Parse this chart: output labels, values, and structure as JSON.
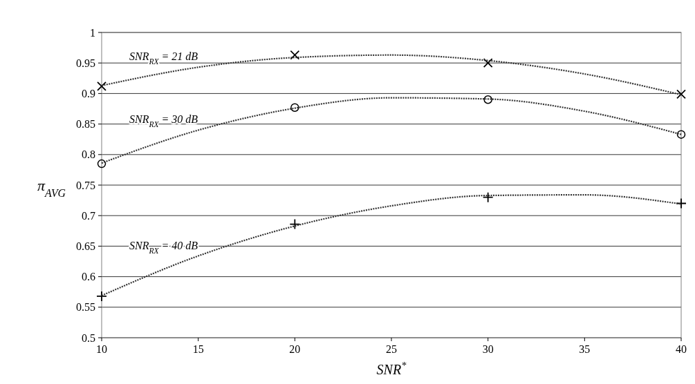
{
  "chart_data": {
    "type": "scatter",
    "xlabel": "SNR$^{*}$",
    "ylabel": "π$_{AVG}$",
    "xlim": [
      10,
      40
    ],
    "xticks": [
      10,
      15,
      20,
      25,
      30,
      35,
      40
    ],
    "ylim": [
      0.5,
      1
    ],
    "yticks": [
      0.5,
      0.55,
      0.6,
      0.65,
      0.7,
      0.75,
      0.8,
      0.85,
      0.9,
      0.95,
      1
    ],
    "grid": "y",
    "series": [
      {
        "color": "#000000",
        "marker": "x",
        "x": [
          10,
          20,
          30,
          40
        ],
        "values": [
          0.912,
          0.963,
          0.95,
          0.899
        ]
      },
      {
        "color": "#000000",
        "marker": "circle",
        "x": [
          10,
          20,
          30,
          40
        ],
        "values": [
          0.785,
          0.877,
          0.89,
          0.833
        ]
      },
      {
        "color": "#000000",
        "marker": "cross",
        "x": [
          10,
          20,
          30,
          40
        ],
        "values": [
          0.568,
          0.686,
          0.73,
          0.72
        ]
      },
      {
        "name": "SNR$_{RX}$ = 21 dB",
        "type": "line",
        "color": "#333333",
        "marker": "none",
        "line_style": "dotted",
        "x": [
          10,
          15,
          20,
          25,
          30,
          35,
          40
        ],
        "values": [
          0.913,
          0.943,
          0.959,
          0.963,
          0.954,
          0.932,
          0.898
        ]
      },
      {
        "name": "SNR$_{RX}$ = 30 dB",
        "type": "line",
        "color": "#333333",
        "marker": "none",
        "line_style": "dotted",
        "x": [
          10,
          15,
          20,
          25,
          30,
          35,
          40
        ],
        "values": [
          0.786,
          0.84,
          0.876,
          0.893,
          0.891,
          0.871,
          0.833
        ]
      },
      {
        "name": "SNR$_{RX}$ = 40 dB",
        "type": "line",
        "color": "#333333",
        "marker": "none",
        "line_style": "dotted",
        "x": [
          10,
          15,
          20,
          25,
          30,
          35,
          40
        ],
        "values": [
          0.569,
          0.634,
          0.683,
          0.716,
          0.733,
          0.734,
          0.719
        ]
      }
    ]
  }
}
